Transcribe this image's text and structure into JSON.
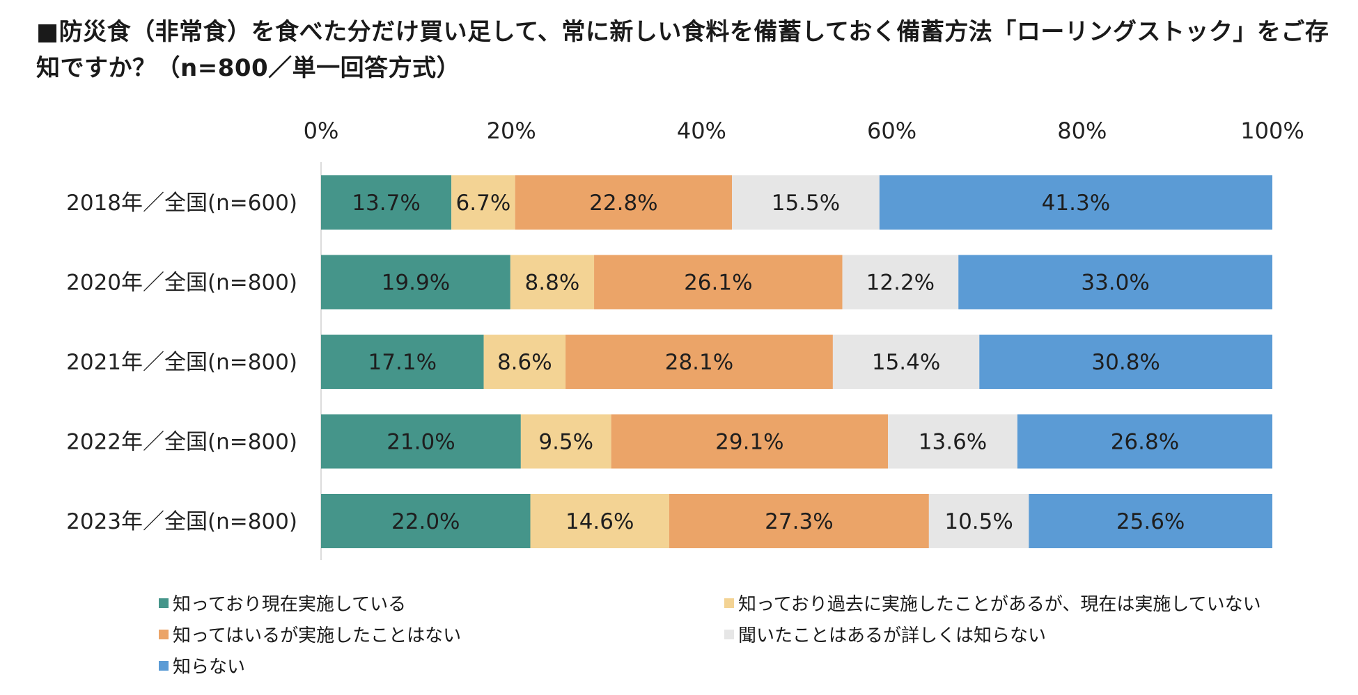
{
  "title": "■防災食（非常食）を食べた分だけ買い足して、常に新しい食料を備蓄しておく備蓄方法「ローリングストック」をご存知ですか？（n=800／単一回答方式）",
  "chart_data": {
    "type": "bar",
    "orientation": "horizontal",
    "stacked": "percent",
    "title": "■防災食（非常食）を食べた分だけ買い足して、常に新しい食料を備蓄しておく備蓄方法「ローリングストック」をご存知ですか？（n=800／単一回答方式）",
    "xlim": [
      0,
      100
    ],
    "x_ticks": [
      "0%",
      "20%",
      "40%",
      "60%",
      "80%",
      "100%"
    ],
    "x_tick_values": [
      0,
      20,
      40,
      60,
      80,
      100
    ],
    "axis_position": "top",
    "grid": false,
    "legend_position": "bottom",
    "categories": [
      "2018年／全国(n=600)",
      "2020年／全国(n=800)",
      "2021年／全国(n=800)",
      "2022年／全国(n=800)",
      "2023年／全国(n=800)"
    ],
    "series": [
      {
        "name": "知っており現在実施している",
        "color": "#45958a",
        "values": [
          13.7,
          19.9,
          17.1,
          21.0,
          22.0
        ],
        "labels": [
          "13.7%",
          "19.9%",
          "17.1%",
          "21.0%",
          "22.0%"
        ]
      },
      {
        "name": "知っており過去に実施したことがあるが、現在は実施していない",
        "color": "#f3d394",
        "values": [
          6.7,
          8.8,
          8.6,
          9.5,
          14.6
        ],
        "labels": [
          "6.7%",
          "8.8%",
          "8.6%",
          "9.5%",
          "14.6%"
        ]
      },
      {
        "name": "知ってはいるが実施したことはない",
        "color": "#eba468",
        "values": [
          22.8,
          26.1,
          28.1,
          29.1,
          27.3
        ],
        "labels": [
          "22.8%",
          "26.1%",
          "28.1%",
          "29.1%",
          "27.3%"
        ]
      },
      {
        "name": "聞いたことはあるが詳しくは知らない",
        "color": "#e6e6e6",
        "values": [
          15.5,
          12.2,
          15.4,
          13.6,
          10.5
        ],
        "labels": [
          "15.5%",
          "12.2%",
          "15.4%",
          "13.6%",
          "10.5%"
        ]
      },
      {
        "name": "知らない",
        "color": "#5b9bd5",
        "values": [
          41.3,
          33.0,
          30.8,
          26.8,
          25.6
        ],
        "labels": [
          "41.3%",
          "33.0%",
          "30.8%",
          "26.8%",
          "25.6%"
        ]
      }
    ]
  }
}
